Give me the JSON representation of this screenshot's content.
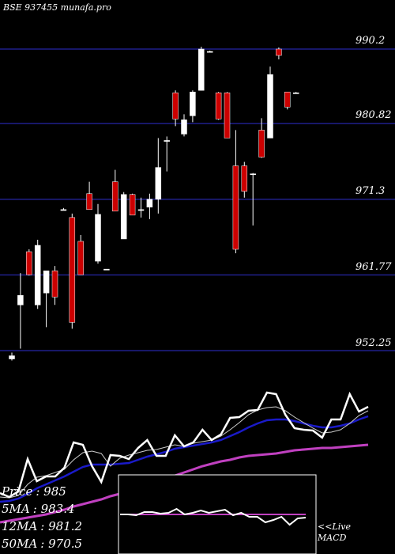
{
  "title": "BSE 937455 munafa.pro",
  "colors": {
    "background": "#000000",
    "gridline": "#1f1f8a",
    "up_candle": "#ffffff",
    "down_candle": "#cc0000",
    "price_line": "#ffffff",
    "ma_short": "#cccccc",
    "ma_mid": "#1a1ac8",
    "ma_long": "#c040c0",
    "macd_line": "#ffffff",
    "macd_signal": "#c040c0",
    "macd_panel_bg": "#000000"
  },
  "stats": [
    {
      "label": "Price",
      "value": ": 985"
    },
    {
      "label": "5MA",
      "value": ": 983.4"
    },
    {
      "label": "12MA",
      "value": ": 981.2"
    },
    {
      "label": "50MA",
      "value": ": 970.5"
    }
  ],
  "macd_label_lines": [
    "<<Live",
    "MACD"
  ],
  "chart_data": {
    "type": "candlestick",
    "title": "BSE 937455 munafa.pro",
    "y_ticks": [
      990.2,
      980.82,
      971.3,
      961.77,
      952.25
    ],
    "ylim": [
      952.25,
      990.2
    ],
    "grid": true,
    "candles": [
      {
        "o": 951.2,
        "h": 952.0,
        "l": 951.0,
        "c": 951.6
      },
      {
        "o": 958.0,
        "h": 962.0,
        "l": 952.5,
        "c": 959.2
      },
      {
        "o": 964.7,
        "h": 965.0,
        "l": 961.7,
        "c": 961.8
      },
      {
        "o": 958.0,
        "h": 966.2,
        "l": 957.5,
        "c": 965.5
      },
      {
        "o": 959.5,
        "h": 962.3,
        "l": 955.2,
        "c": 962.3
      },
      {
        "o": 962.3,
        "h": 962.9,
        "l": 958.0,
        "c": 959.0
      },
      {
        "o": 970.0,
        "h": 970.2,
        "l": 969.9,
        "c": 970.0
      },
      {
        "o": 969.0,
        "h": 969.5,
        "l": 955.0,
        "c": 955.8
      },
      {
        "o": 966.0,
        "h": 966.8,
        "l": 961.8,
        "c": 961.8
      },
      {
        "o": 972.0,
        "h": 973.5,
        "l": 970.0,
        "c": 970.0
      },
      {
        "o": 963.5,
        "h": 970.7,
        "l": 963.2,
        "c": 969.4
      },
      {
        "o": 962.5,
        "h": 962.5,
        "l": 962.5,
        "c": 962.5
      },
      {
        "o": 973.5,
        "h": 975.0,
        "l": 969.8,
        "c": 969.8
      },
      {
        "o": 966.3,
        "h": 972.2,
        "l": 966.3,
        "c": 971.9
      },
      {
        "o": 971.9,
        "h": 972.0,
        "l": 969.3,
        "c": 969.3
      },
      {
        "o": 970.0,
        "h": 971.5,
        "l": 969.0,
        "c": 970.0
      },
      {
        "o": 970.3,
        "h": 972.0,
        "l": 968.8,
        "c": 971.3
      },
      {
        "o": 971.3,
        "h": 979.0,
        "l": 969.5,
        "c": 975.3
      },
      {
        "o": 978.7,
        "h": 979.2,
        "l": 974.8,
        "c": 978.7
      },
      {
        "o": 984.7,
        "h": 985.0,
        "l": 980.5,
        "c": 981.4
      },
      {
        "o": 979.5,
        "h": 982.0,
        "l": 979.2,
        "c": 981.3
      },
      {
        "o": 981.8,
        "h": 985.0,
        "l": 981.0,
        "c": 984.8
      },
      {
        "o": 985.0,
        "h": 990.5,
        "l": 985.0,
        "c": 990.2
      },
      {
        "o": 989.9,
        "h": 990.0,
        "l": 989.8,
        "c": 989.9
      },
      {
        "o": 984.7,
        "h": 984.8,
        "l": 981.3,
        "c": 981.4
      },
      {
        "o": 984.7,
        "h": 984.8,
        "l": 979.0,
        "c": 979.0
      },
      {
        "o": 975.5,
        "h": 980.0,
        "l": 964.5,
        "c": 965.0
      },
      {
        "o": 975.5,
        "h": 976.0,
        "l": 971.5,
        "c": 972.3
      },
      {
        "o": 974.5,
        "h": 974.6,
        "l": 968.0,
        "c": 974.5
      },
      {
        "o": 980.0,
        "h": 981.5,
        "l": 976.5,
        "c": 976.6
      },
      {
        "o": 979.0,
        "h": 988.0,
        "l": 979.0,
        "c": 987.0
      },
      {
        "o": 990.2,
        "h": 990.4,
        "l": 988.9,
        "c": 989.4
      },
      {
        "o": 984.8,
        "h": 984.8,
        "l": 982.6,
        "c": 982.9
      },
      {
        "o": 984.7,
        "h": 984.8,
        "l": 984.6,
        "c": 984.7
      }
    ],
    "lower_panel_series": {
      "price": [
        623,
        628,
        621,
        580,
        608,
        602,
        602,
        591,
        559,
        562,
        589,
        609,
        575,
        576,
        580,
        566,
        556,
        576,
        576,
        550,
        564,
        559,
        543,
        556,
        549,
        528,
        527,
        519,
        518,
        496,
        498,
        524,
        541,
        543,
        544,
        553,
        530,
        530,
        498,
        520,
        514
      ],
      "ma_short": [
        628,
        629,
        626,
        612,
        603,
        601,
        597,
        593,
        581,
        572,
        570,
        573,
        589,
        579,
        575,
        572,
        569,
        568,
        565,
        562,
        564,
        560,
        558,
        556,
        551,
        543,
        534,
        524,
        518,
        515,
        514,
        519,
        527,
        534,
        541,
        547,
        546,
        543,
        535,
        525,
        519
      ],
      "ma_mid": [
        634,
        633,
        630,
        624,
        617,
        612,
        607,
        602,
        596,
        590,
        587,
        587,
        587,
        586,
        585,
        581,
        577,
        574,
        571,
        567,
        565,
        563,
        561,
        559,
        556,
        551,
        546,
        540,
        535,
        531,
        530,
        530,
        532,
        535,
        538,
        540,
        540,
        538,
        535,
        530,
        526
      ],
      "ma_long": [
        660,
        658,
        656,
        654,
        652,
        650,
        647,
        644,
        640,
        637,
        634,
        631,
        627,
        624,
        620,
        617,
        613,
        609,
        605,
        601,
        597,
        593,
        589,
        586,
        583,
        581,
        578,
        576,
        575,
        574,
        573,
        571,
        569,
        568,
        567,
        566,
        566,
        565,
        564,
        563,
        562
      ],
      "macd": [
        650,
        650,
        651,
        647,
        647,
        649,
        648,
        643,
        650,
        648,
        645,
        648,
        646,
        644,
        651,
        648,
        653,
        653,
        660,
        657,
        653,
        663,
        655,
        654
      ],
      "macd_signal": [
        650,
        650,
        650,
        650,
        650,
        650,
        650,
        650,
        650,
        650,
        650,
        650,
        650,
        650,
        650,
        650,
        650,
        650,
        650,
        650,
        650,
        650,
        650,
        650
      ]
    }
  }
}
